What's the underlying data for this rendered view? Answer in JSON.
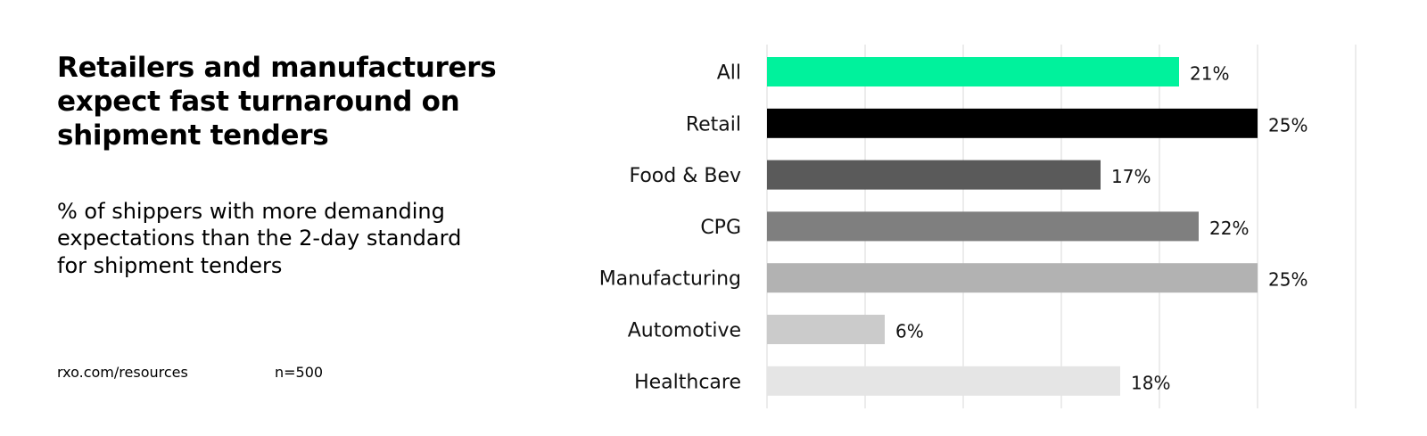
{
  "header": {
    "title": "Retailers and manufacturers expect fast turnaround on shipment tenders",
    "subtitle": "% of shippers with more demanding expectations than the 2-day standard for shipment tenders"
  },
  "footer": {
    "source": "rxo.com/resources",
    "sample_size": "n=500"
  },
  "chart_data": {
    "type": "bar",
    "orientation": "horizontal",
    "categories": [
      "All",
      "Retail",
      "Food & Bev",
      "CPG",
      "Manufacturing",
      "Automotive",
      "Healthcare"
    ],
    "values": [
      21,
      25,
      17,
      22,
      25,
      6,
      18
    ],
    "data_labels": [
      "21%",
      "25%",
      "17%",
      "22%",
      "25%",
      "6%",
      "18%"
    ],
    "colors": [
      "#00f29c",
      "#000000",
      "#5a5a5a",
      "#7f7f7f",
      "#b2b2b2",
      "#cbcbcb",
      "#e5e5e5"
    ],
    "xlim": [
      0,
      30
    ],
    "grid": true,
    "grid_step": 5,
    "xlabel": "",
    "ylabel": ""
  }
}
